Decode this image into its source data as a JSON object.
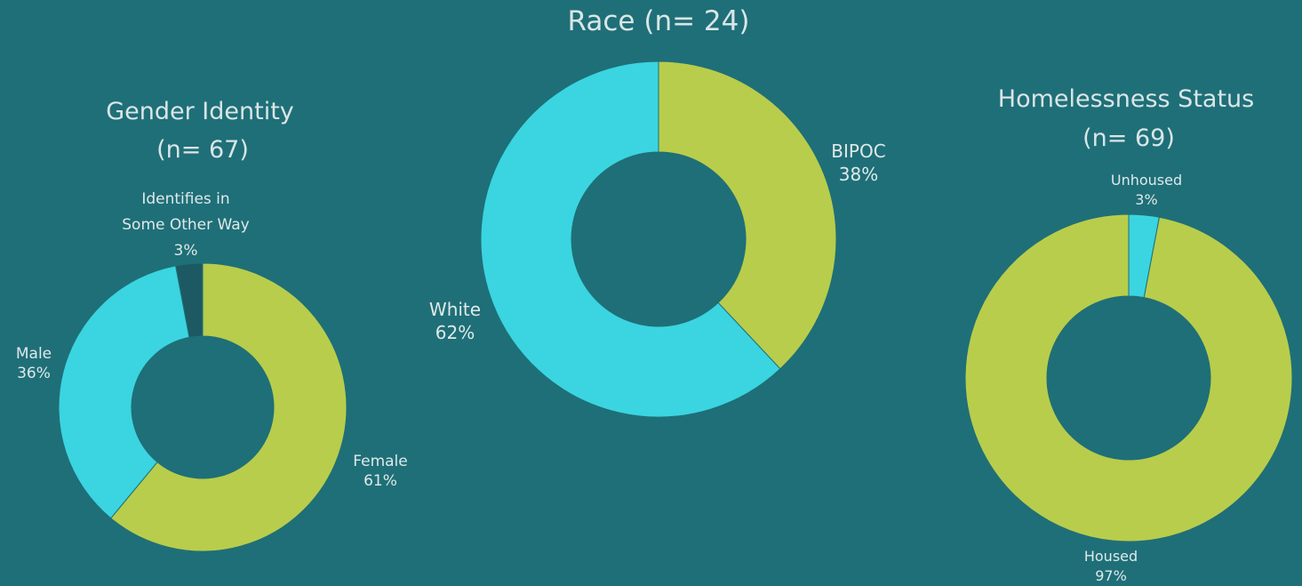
{
  "colors": {
    "background": "#1f6f78",
    "cyan": "#3ad5e0",
    "lime": "#b8cd4b",
    "dark": "#1c5963"
  },
  "chart_data": [
    {
      "type": "pie",
      "variant": "donut",
      "title": "Gender Identity",
      "subtitle": "(n= 67)",
      "slices": [
        {
          "label": "Female",
          "percent_label": "61%",
          "value": 61,
          "color": "#b8cd4b"
        },
        {
          "label": "Male",
          "percent_label": "36%",
          "value": 36,
          "color": "#3ad5e0"
        },
        {
          "label_lines": [
            "Identifies in",
            "Some Other Way"
          ],
          "percent_label": "3%",
          "value": 3,
          "color": "#1c5963"
        }
      ]
    },
    {
      "type": "pie",
      "variant": "donut",
      "title": "Race (n= 24)",
      "slices": [
        {
          "label": "BIPOC",
          "percent_label": "38%",
          "value": 38,
          "color": "#b8cd4b"
        },
        {
          "label": "White",
          "percent_label": "62%",
          "value": 62,
          "color": "#3ad5e0"
        }
      ]
    },
    {
      "type": "pie",
      "variant": "donut",
      "title": "Homelessness Status",
      "subtitle": "(n= 69)",
      "slices": [
        {
          "label": "Unhoused",
          "percent_label": "3%",
          "value": 3,
          "color": "#3ad5e0"
        },
        {
          "label": "Housed",
          "percent_label": "97%",
          "value": 97,
          "color": "#b8cd4b"
        }
      ]
    }
  ]
}
